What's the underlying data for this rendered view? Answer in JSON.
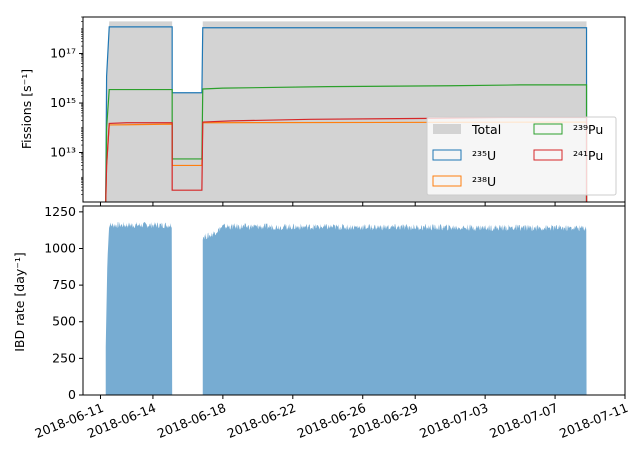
{
  "chart_data": [
    {
      "type": "area",
      "panel": "top",
      "ylabel": "Fissions [s$^{-1}$]",
      "ylabel_display": "Fissions [s⁻¹]",
      "yscale": "log",
      "ylim": [
        100000000000.0,
        3e+18
      ],
      "y_ticks": [
        {
          "value": 10000000000000.0,
          "label": "10¹³"
        },
        {
          "value": 1000000000000000.0,
          "label": "10¹⁵"
        },
        {
          "value": 1e+17,
          "label": "10¹⁷"
        }
      ],
      "xlim": [
        "2018-06-10",
        "2018-07-11"
      ],
      "legend": {
        "placement": "lower-right",
        "columns": 2,
        "entries": [
          {
            "label": "Total",
            "display": "Total",
            "key": "total"
          },
          {
            "label": "$^{239}$Pu",
            "display": "²³⁹Pu",
            "key": "pu239"
          },
          {
            "label": "$^{235}$U",
            "display": "²³⁵U",
            "key": "u235"
          },
          {
            "label": "$^{241}$Pu",
            "display": "²⁴¹Pu",
            "key": "pu241"
          },
          {
            "label": "$^{238}$U",
            "display": "²³⁸U",
            "key": "u238"
          }
        ]
      },
      "series": [
        {
          "key": "total",
          "style": "filled",
          "color": "#d3d3d3",
          "points": [
            [
              "2018-06-11.3",
              100000000000.0
            ],
            [
              "2018-06-11.35",
              1.2e+16
            ],
            [
              "2018-06-11.5",
              2e+18
            ],
            [
              "2018-06-15.1",
              2e+18
            ],
            [
              "2018-06-15.1",
              2600000000000000.0
            ],
            [
              "2018-06-16.8",
              2600000000000000.0
            ],
            [
              "2018-06-16.85",
              2e+18
            ],
            [
              "2018-07-08.8",
              2e+18
            ],
            [
              "2018-07-08.8",
              100000000000.0
            ]
          ]
        },
        {
          "key": "u235",
          "style": "step",
          "color": "#1f77b4",
          "points": [
            [
              "2018-06-11.3",
              100000000000.0
            ],
            [
              "2018-06-11.35",
              1.2e+16
            ],
            [
              "2018-06-11.5",
              1.2e+18
            ],
            [
              "2018-06-15.1",
              1.2e+18
            ],
            [
              "2018-06-15.1",
              2600000000000000.0
            ],
            [
              "2018-06-16.8",
              2600000000000000.0
            ],
            [
              "2018-06-16.85",
              1.1e+18
            ],
            [
              "2018-07-08.8",
              1.1e+18
            ],
            [
              "2018-07-08.8",
              100000000000.0
            ]
          ]
        },
        {
          "key": "u238",
          "style": "step",
          "color": "#ff7f0e",
          "points": [
            [
              "2018-06-11.3",
              100000000000.0
            ],
            [
              "2018-06-11.35",
              3000000000000.0
            ],
            [
              "2018-06-11.5",
              130000000000000.0
            ],
            [
              "2018-06-15.1",
              140000000000000.0
            ],
            [
              "2018-06-15.1",
              3000000000000.0
            ],
            [
              "2018-06-16.8",
              3000000000000.0
            ],
            [
              "2018-06-16.85",
              160000000000000.0
            ],
            [
              "2018-07-08.8",
              170000000000000.0
            ],
            [
              "2018-07-08.8",
              100000000000.0
            ]
          ]
        },
        {
          "key": "pu239",
          "style": "step",
          "color": "#2ca02c",
          "points": [
            [
              "2018-06-11.3",
              100000000000.0
            ],
            [
              "2018-06-11.35",
              100000000000000.0
            ],
            [
              "2018-06-11.5",
              3500000000000000.0
            ],
            [
              "2018-06-15.1",
              3500000000000000.0
            ],
            [
              "2018-06-15.1",
              5500000000000.0
            ],
            [
              "2018-06-16.8",
              5500000000000.0
            ],
            [
              "2018-06-16.85",
              3700000000000000.0
            ],
            [
              "2018-06-18",
              4000000000000000.0
            ],
            [
              "2018-06-24",
              4600000000000000.0
            ],
            [
              "2018-07-01",
              5000000000000000.0
            ],
            [
              "2018-07-05",
              5400000000000000.0
            ],
            [
              "2018-07-08.8",
              5400000000000000.0
            ],
            [
              "2018-07-08.8",
              100000000000.0
            ]
          ]
        },
        {
          "key": "pu241",
          "style": "step",
          "color": "#d62728",
          "points": [
            [
              "2018-06-11.3",
              100000000000.0
            ],
            [
              "2018-06-11.35",
              3000000000000.0
            ],
            [
              "2018-06-11.5",
              150000000000000.0
            ],
            [
              "2018-06-12.5",
              160000000000000.0
            ],
            [
              "2018-06-15.1",
              160000000000000.0
            ],
            [
              "2018-06-15.1",
              300000000000.0
            ],
            [
              "2018-06-16.8",
              300000000000.0
            ],
            [
              "2018-06-16.85",
              170000000000000.0
            ],
            [
              "2018-06-18.5",
              190000000000000.0
            ],
            [
              "2018-06-23",
              220000000000000.0
            ],
            [
              "2018-06-30",
              240000000000000.0
            ],
            [
              "2018-07-04",
              260000000000000.0
            ],
            [
              "2018-07-08.8",
              260000000000000.0
            ],
            [
              "2018-07-08.8",
              100000000000.0
            ]
          ]
        }
      ]
    },
    {
      "type": "bar",
      "panel": "bottom",
      "ylabel": "IBD rate [day$^{-1}$]",
      "ylabel_display": "IBD rate [day⁻¹]",
      "ylim": [
        0,
        1290
      ],
      "y_ticks": [
        0,
        250,
        500,
        750,
        1000,
        1250
      ],
      "xlim": [
        "2018-06-10",
        "2018-07-11"
      ],
      "x_ticks": [
        "2018-06-11",
        "2018-06-14",
        "2018-06-18",
        "2018-06-22",
        "2018-06-26",
        "2018-06-29",
        "2018-07-03",
        "2018-07-07",
        "2018-07-11"
      ],
      "color": "#77acd2",
      "series": [
        {
          "points": [
            [
              "2018-06-11.3",
              330
            ],
            [
              "2018-06-11.4",
              950
            ],
            [
              "2018-06-11.5",
              1160
            ],
            [
              "2018-06-15.1",
              1160
            ],
            [
              "2018-06-15.1",
              0
            ]
          ]
        },
        {
          "points": [
            [
              "2018-06-16.85",
              1080
            ],
            [
              "2018-06-17.3",
              1090
            ],
            [
              "2018-06-18",
              1150
            ],
            [
              "2018-07-08.8",
              1140
            ],
            [
              "2018-07-08.8",
              0
            ]
          ]
        }
      ]
    }
  ]
}
